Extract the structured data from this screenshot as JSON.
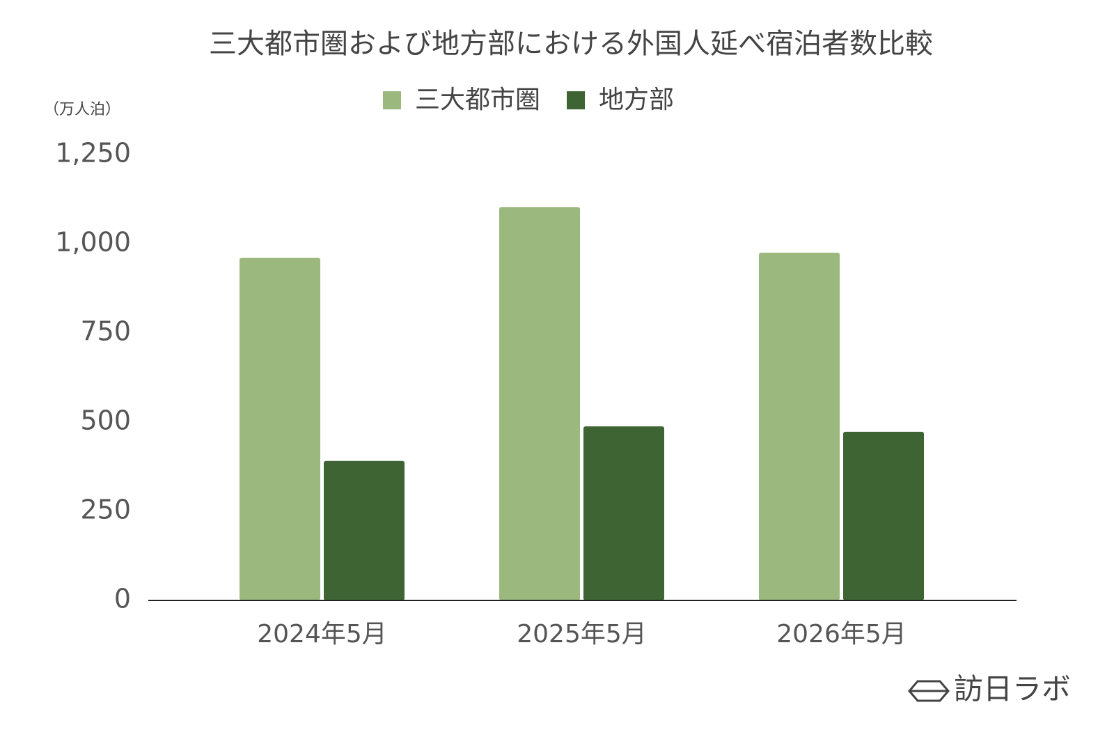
{
  "chart_data": {
    "type": "bar",
    "title": "三大都市圏および地方部における外国人延べ宿泊者数比較",
    "y_unit_label": "（万人泊）",
    "categories": [
      "2024年5月",
      "2025年5月",
      "2026年5月"
    ],
    "series": [
      {
        "name": "三大都市圏",
        "color": "#9bb87e",
        "values": [
          961,
          1103,
          975
        ]
      },
      {
        "name": "地方部",
        "color": "#3e6433",
        "values": [
          391,
          488,
          473
        ]
      }
    ],
    "ylim": [
      0,
      1250
    ],
    "yticks": [
      0,
      250,
      500,
      750,
      {
        "value": 1000,
        "label": "1,000"
      },
      {
        "value": 1250,
        "label": "1,250"
      }
    ],
    "grid": false,
    "legend": "top"
  },
  "logo": "訪日ラボ"
}
